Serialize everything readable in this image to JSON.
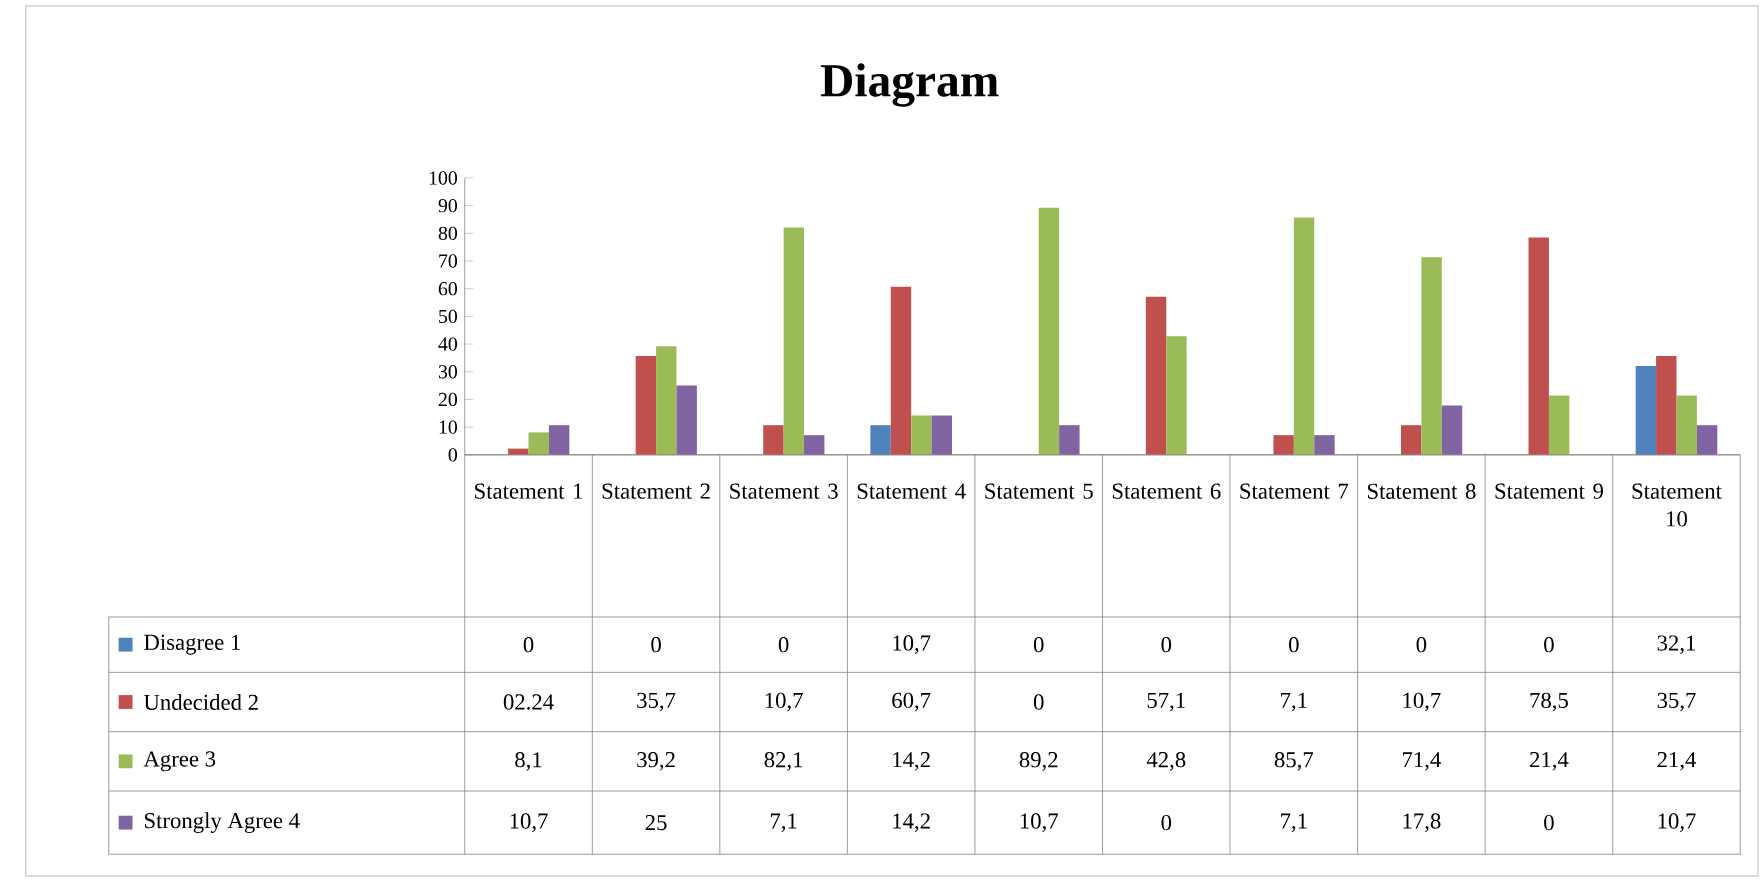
{
  "chart_data": {
    "type": "bar",
    "title": "Diagram",
    "categories": [
      "Statement 1",
      "Statement 2",
      "Statement 3",
      "Statement 4",
      "Statement 5",
      "Statement 6",
      "Statement 7",
      "Statement 8",
      "Statement 9",
      "Statement 10"
    ],
    "series": [
      {
        "name": "Disagree 1",
        "color": "#4f81bd",
        "values": [
          0,
          0,
          0,
          10.7,
          0,
          0,
          0,
          0,
          0,
          32.1
        ],
        "value_labels": [
          "0",
          "0",
          "0",
          "10,7",
          "0",
          "0",
          "0",
          "0",
          "0",
          "32,1"
        ]
      },
      {
        "name": "Undecided 2",
        "color": "#c0504d",
        "values": [
          2.24,
          35.7,
          10.7,
          60.7,
          0,
          57.1,
          7.1,
          10.7,
          78.5,
          35.7
        ],
        "value_labels": [
          "02.24",
          "35,7",
          "10,7",
          "60,7",
          "0",
          "57,1",
          "7,1",
          "10,7",
          "78,5",
          "35,7"
        ]
      },
      {
        "name": "Agree 3",
        "color": "#9bbb59",
        "values": [
          8.1,
          39.2,
          82.1,
          14.2,
          89.2,
          42.8,
          85.7,
          71.4,
          21.4,
          21.4
        ],
        "value_labels": [
          "8,1",
          "39,2",
          "82,1",
          "14,2",
          "89,2",
          "42,8",
          "85,7",
          "71,4",
          "21,4",
          "21,4"
        ]
      },
      {
        "name": "Strongly Agree 4",
        "color": "#8064a2",
        "values": [
          10.7,
          25,
          7.1,
          14.2,
          10.7,
          0,
          7.1,
          17.8,
          0,
          10.7
        ],
        "value_labels": [
          "10,7",
          "25",
          "7,1",
          "14,2",
          "10,7",
          "0",
          "7,1",
          "17,8",
          "0",
          "10,7"
        ]
      }
    ],
    "ylim": [
      0,
      100
    ],
    "yticks": [
      0,
      10,
      20,
      30,
      40,
      50,
      60,
      70,
      80,
      90,
      100
    ],
    "legend": "bottom left"
  }
}
